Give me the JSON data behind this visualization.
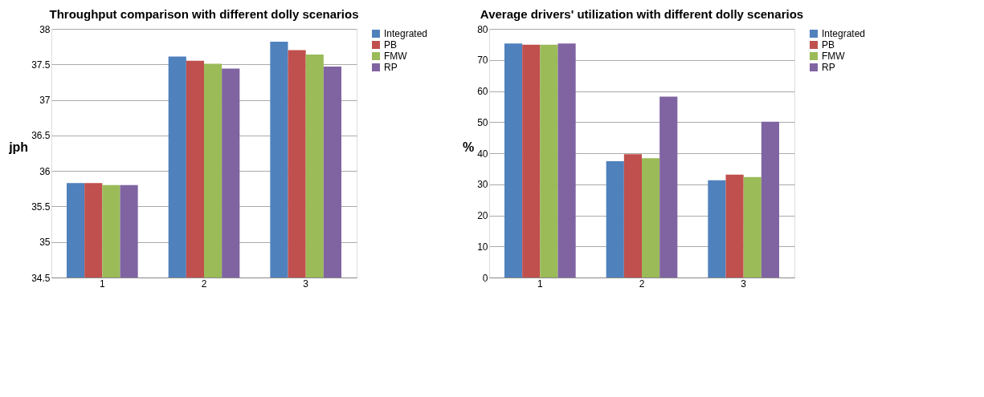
{
  "chart_data": [
    {
      "type": "bar",
      "title": "Throughput comparison with different dolly scenarios",
      "ylabel": "jph",
      "categories": [
        "1",
        "2",
        "3"
      ],
      "ylim": [
        34.5,
        38
      ],
      "yticks": [
        34.5,
        35,
        35.5,
        36,
        36.5,
        37,
        37.5,
        38
      ],
      "grid": "y",
      "legend": "right",
      "series": [
        {
          "name": "Integrated",
          "color": "#4f81bd",
          "values": [
            35.83,
            37.61,
            37.82
          ]
        },
        {
          "name": "PB",
          "color": "#c0504d",
          "values": [
            35.83,
            37.55,
            37.7
          ]
        },
        {
          "name": "FMW",
          "color": "#9bbb59",
          "values": [
            35.8,
            37.51,
            37.64
          ]
        },
        {
          "name": "RP",
          "color": "#8064a2",
          "values": [
            35.8,
            37.44,
            37.47
          ]
        }
      ]
    },
    {
      "type": "bar",
      "title": "Average drivers' utilization with different dolly scenarios",
      "ylabel": "%",
      "categories": [
        "1",
        "2",
        "3"
      ],
      "ylim": [
        0,
        80
      ],
      "yticks": [
        0,
        10,
        20,
        30,
        40,
        50,
        60,
        70,
        80
      ],
      "grid": "y",
      "legend": "right",
      "series": [
        {
          "name": "Integrated",
          "color": "#4f81bd",
          "values": [
            75.3,
            37.4,
            31.3
          ]
        },
        {
          "name": "PB",
          "color": "#c0504d",
          "values": [
            74.9,
            39.7,
            33.1
          ]
        },
        {
          "name": "FMW",
          "color": "#9bbb59",
          "values": [
            74.9,
            38.4,
            32.3
          ]
        },
        {
          "name": "RP",
          "color": "#8064a2",
          "values": [
            75.3,
            58.2,
            50.1
          ]
        }
      ]
    }
  ]
}
